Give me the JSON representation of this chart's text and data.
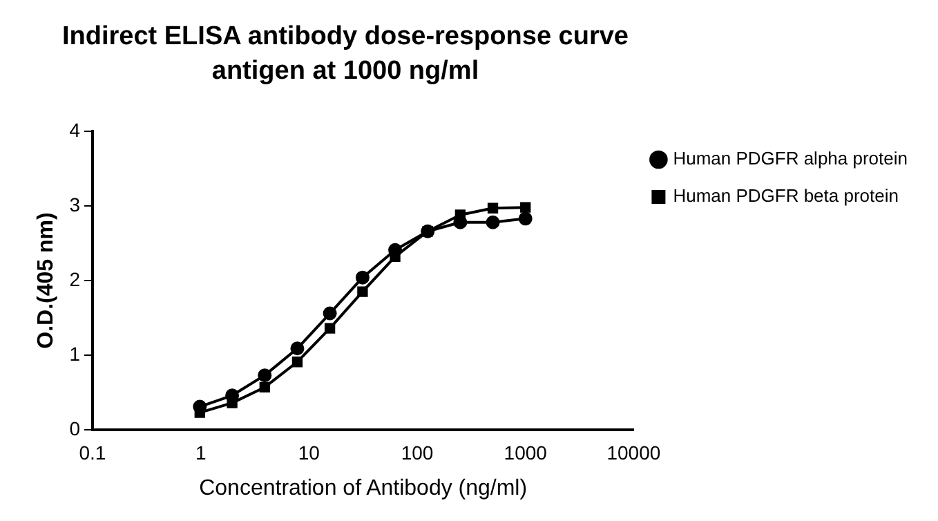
{
  "chart_data": {
    "type": "line",
    "title": "Indirect ELISA antibody dose-response curve\nantigen at 1000 ng/ml",
    "xlabel": "Concentration of Antibody (ng/ml)",
    "ylabel": "O.D.(405 nm)",
    "x": [
      0.98,
      1.95,
      3.9,
      7.8,
      15.6,
      31.25,
      62.5,
      125,
      250,
      500,
      1000
    ],
    "log": "x",
    "xlim": [
      0.1,
      10000
    ],
    "xticks": [
      0.1,
      1,
      10,
      100,
      1000,
      10000
    ],
    "ylim": [
      0,
      4
    ],
    "yticks": [
      0,
      1,
      2,
      3,
      4
    ],
    "grid": false,
    "legend": "right",
    "line_style": "solid",
    "series": [
      {
        "name": "Human PDGFR alpha protein",
        "color": "#000000",
        "marker": "circle",
        "values": [
          0.31,
          0.46,
          0.73,
          1.09,
          1.56,
          2.04,
          2.41,
          2.66,
          2.78,
          2.78,
          2.83
        ]
      },
      {
        "name": "Human PDGFR beta protein",
        "color": "#000000",
        "marker": "square",
        "values": [
          0.23,
          0.36,
          0.57,
          0.91,
          1.36,
          1.85,
          2.32,
          2.66,
          2.88,
          2.97,
          2.98
        ]
      }
    ]
  }
}
